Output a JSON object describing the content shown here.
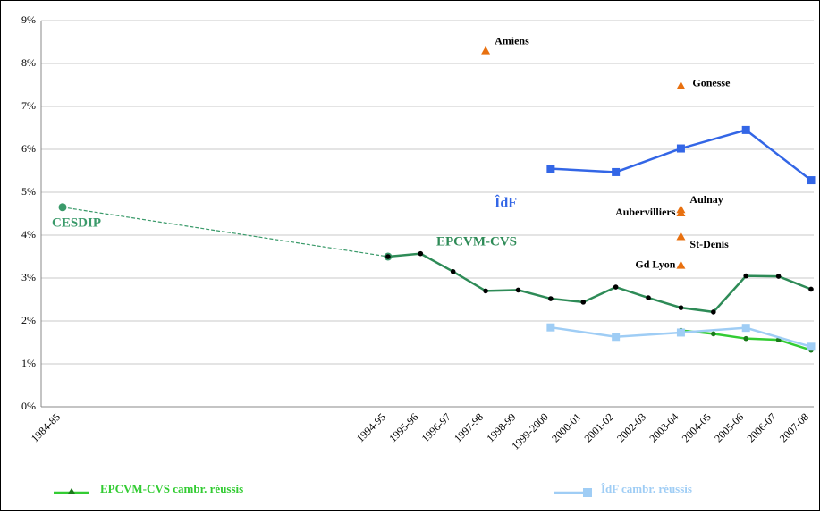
{
  "chart_data": {
    "type": "line",
    "categories": [
      "1984-85",
      null,
      null,
      null,
      null,
      null,
      null,
      null,
      null,
      null,
      "1994-95",
      "1995-96",
      "1996-97",
      "1997-98",
      "1998-99",
      "1999-2000",
      "2000-01",
      "2001-02",
      "2002-03",
      "2003-04",
      "2004-05",
      "2005-06",
      "2006-07",
      "2007-08"
    ],
    "ylim": [
      0,
      9
    ],
    "yticks": [
      {
        "value": 0,
        "label": "0%"
      },
      {
        "value": 1,
        "label": "1%"
      },
      {
        "value": 2,
        "label": "2%"
      },
      {
        "value": 3,
        "label": "3%"
      },
      {
        "value": 4,
        "label": "4%"
      },
      {
        "value": 5,
        "label": "5%"
      },
      {
        "value": 6,
        "label": "6%"
      },
      {
        "value": 7,
        "label": "7%"
      },
      {
        "value": 8,
        "label": "8%"
      },
      {
        "value": 9,
        "label": "9%"
      }
    ],
    "grid": true,
    "series": [
      {
        "name": "CESDIP",
        "color": "#3a9a6a",
        "dashed": true,
        "span_gaps": true,
        "marker": "circle",
        "marker_color": "#3a9a6a",
        "in_legend": false,
        "values": [
          4.65,
          null,
          null,
          null,
          null,
          null,
          null,
          null,
          null,
          null,
          3.5,
          null,
          null,
          null,
          null,
          null,
          null,
          null,
          null,
          null,
          null,
          null,
          null,
          null
        ]
      },
      {
        "name": "EPCVM-CVS",
        "color": "#2e8b57",
        "span_gaps": false,
        "marker": "circle",
        "marker_color": "#000000",
        "in_legend": false,
        "values": [
          null,
          null,
          null,
          null,
          null,
          null,
          null,
          null,
          null,
          null,
          3.5,
          3.57,
          3.15,
          2.7,
          2.72,
          2.52,
          2.44,
          2.79,
          2.54,
          2.31,
          2.21,
          3.05,
          3.04,
          2.74
        ]
      },
      {
        "name": "ÎdF",
        "color": "#3366e6",
        "span_gaps": true,
        "marker": "square",
        "marker_color": "#3366e6",
        "in_legend": false,
        "values": [
          null,
          null,
          null,
          null,
          null,
          null,
          null,
          null,
          null,
          null,
          null,
          null,
          null,
          null,
          null,
          5.55,
          null,
          5.47,
          null,
          6.02,
          null,
          6.45,
          null,
          5.28
        ]
      },
      {
        "name": "EPCVM-CVS cambr. réussis",
        "color": "#33cc33",
        "span_gaps": false,
        "marker": "circle",
        "marker_color": "#1a7a1a",
        "in_legend": true,
        "values": [
          null,
          null,
          null,
          null,
          null,
          null,
          null,
          null,
          null,
          null,
          null,
          null,
          null,
          null,
          null,
          null,
          null,
          null,
          null,
          1.78,
          1.7,
          1.59,
          1.56,
          1.32
        ]
      },
      {
        "name": "ÎdF cambr. réussis",
        "color": "#9fcdf5",
        "span_gaps": true,
        "marker": "square",
        "marker_color": "#9fcdf5",
        "in_legend": true,
        "values": [
          null,
          null,
          null,
          null,
          null,
          null,
          null,
          null,
          null,
          null,
          null,
          null,
          null,
          null,
          null,
          1.85,
          null,
          1.63,
          null,
          1.73,
          null,
          1.84,
          null,
          1.4
        ]
      }
    ],
    "points": [
      {
        "label": "Amiens",
        "x": "1997-98",
        "y": 8.3
      },
      {
        "label": "Gonesse",
        "x": "2003-04",
        "y": 7.48
      },
      {
        "label": "Aulnay",
        "x": "2003-04",
        "y": 4.6
      },
      {
        "label": "Aubervilliers",
        "x": "2003-04",
        "y": 4.52
      },
      {
        "label": "St-Denis",
        "x": "2003-04",
        "y": 3.97
      },
      {
        "label": "Gd Lyon",
        "x": "2003-04",
        "y": 3.3
      }
    ],
    "points_color": "#e8700f"
  }
}
